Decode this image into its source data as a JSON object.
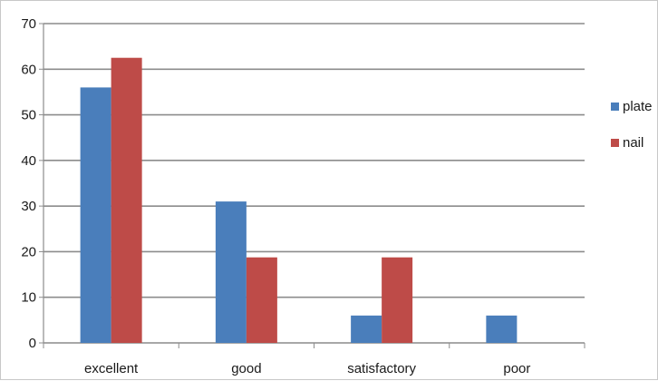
{
  "chart_data": {
    "type": "bar",
    "categories": [
      "excellent",
      "good",
      "satisfactory",
      "poor"
    ],
    "series": [
      {
        "name": "plate",
        "values": [
          56,
          31,
          6,
          6
        ],
        "color": "#4a7ebb"
      },
      {
        "name": "nail",
        "values": [
          62.5,
          18.75,
          18.75,
          0
        ],
        "color": "#be4b48"
      }
    ],
    "ylim": [
      0,
      70
    ],
    "yticks": [
      0,
      10,
      20,
      30,
      40,
      50,
      60,
      70
    ],
    "grid": true,
    "legend_position": "right"
  }
}
